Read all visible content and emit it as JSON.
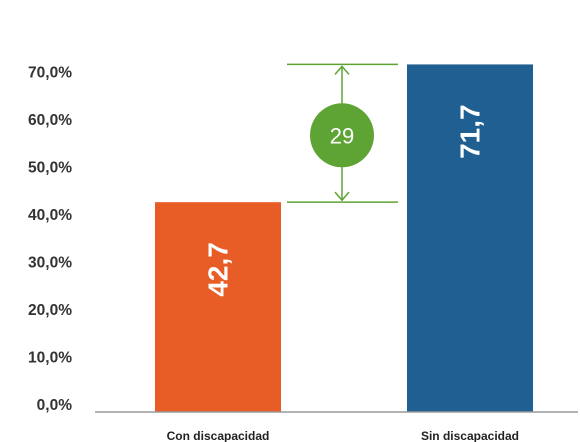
{
  "chart_data": {
    "type": "bar",
    "title": "",
    "xlabel": "",
    "ylabel": "",
    "ylim": [
      0,
      80
    ],
    "yticks": [
      "0,0%",
      "10,0%",
      "20,0%",
      "30,0%",
      "40,0%",
      "50,0%",
      "60,0%",
      "70,0%"
    ],
    "categories": [
      "Con discapacidad",
      "Sin discapacidad"
    ],
    "values": [
      42.7,
      71.7
    ],
    "value_labels": [
      "42,7",
      "71,7"
    ],
    "colors": [
      "#e85d26",
      "#1f5f91"
    ],
    "difference": {
      "label": "29",
      "color": "#5ea434"
    },
    "grid": false
  }
}
